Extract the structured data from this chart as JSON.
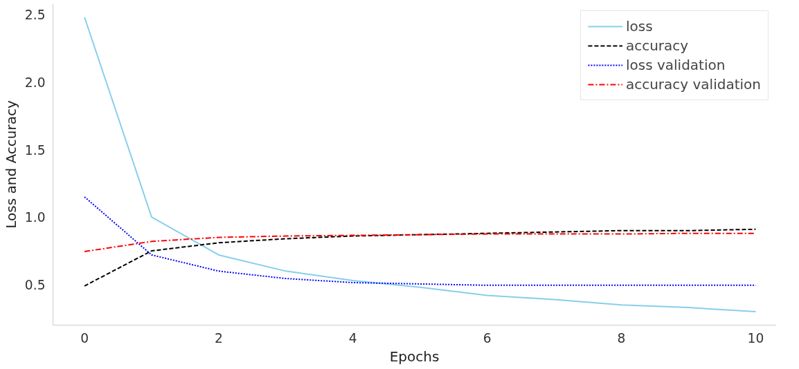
{
  "chart_data": {
    "type": "line",
    "xlabel": "Epochs",
    "ylabel": "Loss and Accuracy",
    "x": [
      0,
      1,
      2,
      3,
      4,
      5,
      6,
      7,
      8,
      9,
      10
    ],
    "series": [
      {
        "name": "loss",
        "color": "#87ceeb",
        "line_style": "solid",
        "values": [
          2.48,
          1.0,
          0.72,
          0.6,
          0.53,
          0.48,
          0.42,
          0.39,
          0.35,
          0.33,
          0.3
        ]
      },
      {
        "name": "accuracy",
        "color": "#000000",
        "line_style": "dashed",
        "values": [
          0.49,
          0.75,
          0.81,
          0.84,
          0.86,
          0.87,
          0.88,
          0.89,
          0.9,
          0.9,
          0.91
        ]
      },
      {
        "name": "loss validation",
        "color": "#0000ff",
        "line_style": "dotted",
        "values": [
          1.15,
          0.72,
          0.6,
          0.545,
          0.515,
          0.505,
          0.495,
          0.495,
          0.495,
          0.495,
          0.495
        ]
      },
      {
        "name": "accuracy validation",
        "color": "#ff0000",
        "line_style": "dashdot",
        "values": [
          0.745,
          0.82,
          0.85,
          0.86,
          0.865,
          0.87,
          0.875,
          0.875,
          0.875,
          0.88,
          0.88
        ]
      }
    ],
    "xlim": [
      -0.47,
      10.3
    ],
    "ylim": [
      0.2,
      2.58
    ],
    "xticks": [
      0,
      2,
      4,
      6,
      8,
      10
    ],
    "yticks": [
      0.5,
      {
        "value": 1,
        "label": "1.0"
      },
      1.5,
      {
        "value": 2,
        "label": "2.0"
      },
      2.5
    ],
    "grid": false,
    "legend": "top right",
    "marker": "none"
  }
}
